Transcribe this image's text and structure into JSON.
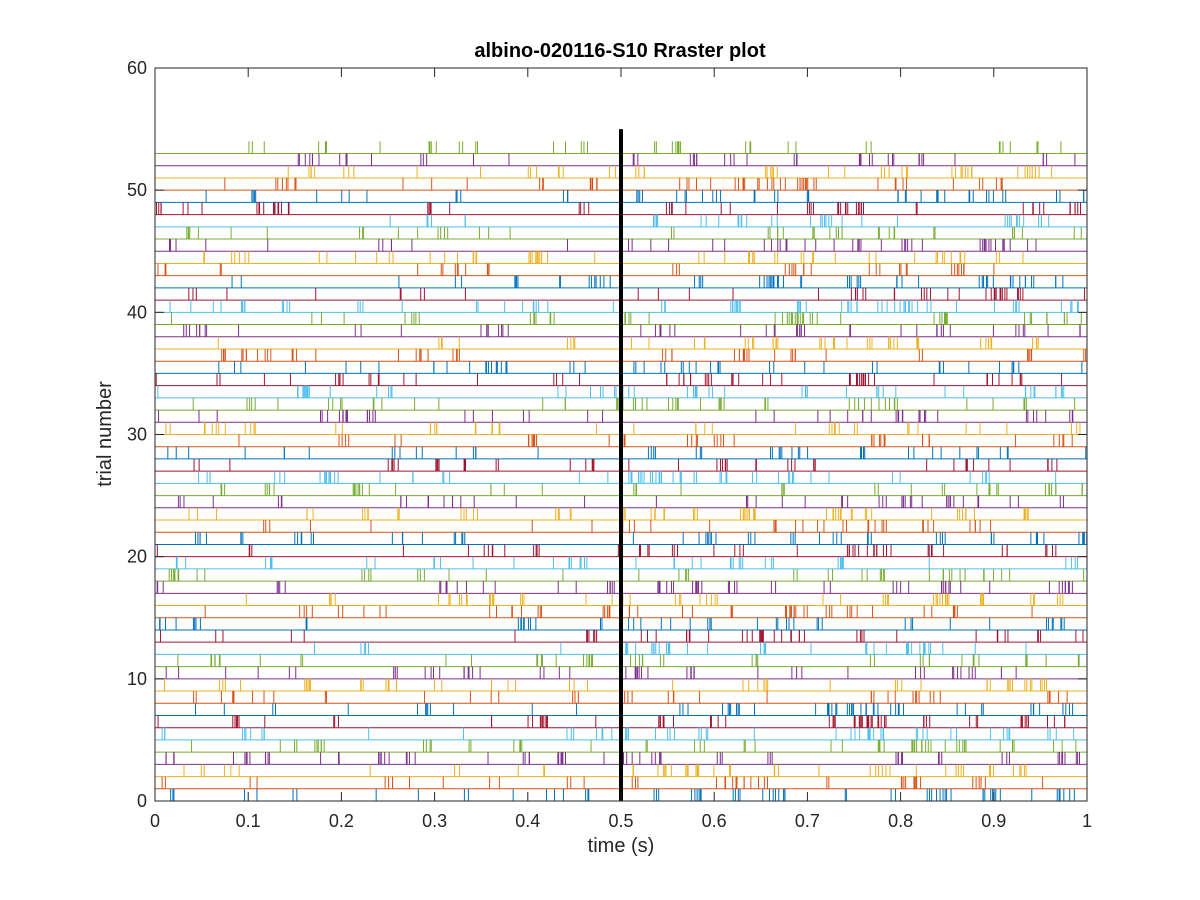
{
  "chart_data": {
    "type": "raster",
    "title": "albino-020116-S10 Rraster plot",
    "xlabel": "time (s)",
    "ylabel": "trial number",
    "xlim": [
      0,
      1
    ],
    "ylim": [
      0,
      60
    ],
    "xticks": [
      "0",
      "0.1",
      "0.2",
      "0.3",
      "0.4",
      "0.5",
      "0.6",
      "0.7",
      "0.8",
      "0.9",
      "1"
    ],
    "yticks": [
      "0",
      "10",
      "20",
      "30",
      "40",
      "50",
      "60"
    ],
    "grid": false,
    "legend": "none",
    "stimulus_onset_s": 0.5,
    "stimulus_line_ymax": 55,
    "trials": 54,
    "colors": [
      "#0072BD",
      "#D95319",
      "#EDB120",
      "#7E2F8E",
      "#77AC30",
      "#4DBEEE",
      "#A2142F"
    ]
  }
}
